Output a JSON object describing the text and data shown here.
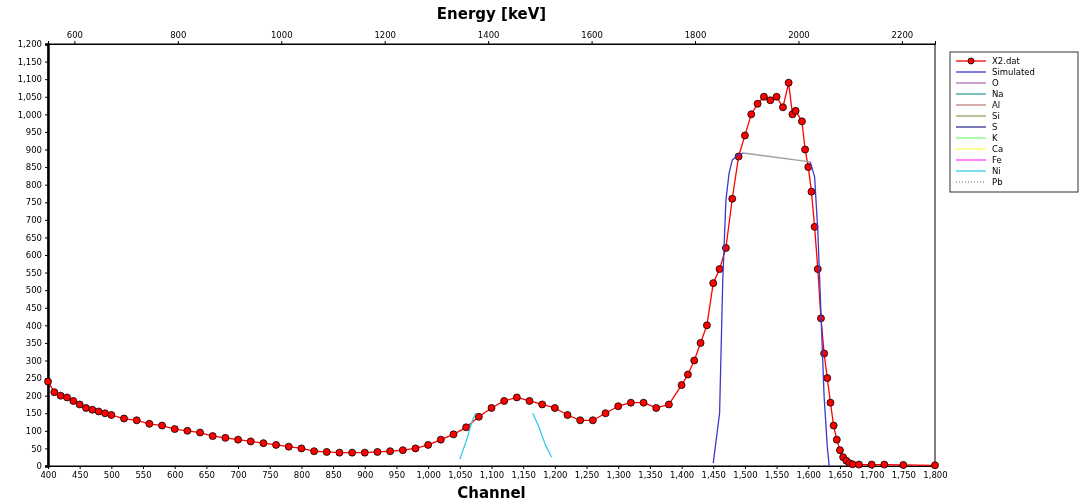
{
  "chart_data": {
    "type": "line",
    "xlabel": "Channel",
    "x2label": "Energy [keV]",
    "xlim": [
      400,
      1800
    ],
    "xticks": [
      400,
      450,
      500,
      550,
      600,
      650,
      700,
      750,
      800,
      850,
      900,
      950,
      {
        "value": 1000,
        "label": "1,000"
      },
      {
        "value": 1050,
        "label": "1,050"
      },
      {
        "value": 1100,
        "label": "1,100"
      },
      {
        "value": 1150,
        "label": "1,150"
      },
      {
        "value": 1200,
        "label": "1,200"
      },
      {
        "value": 1250,
        "label": "1,250"
      },
      {
        "value": 1300,
        "label": "1,300"
      },
      {
        "value": 1350,
        "label": "1,350"
      },
      {
        "value": 1400,
        "label": "1,400"
      },
      {
        "value": 1450,
        "label": "1,450"
      },
      {
        "value": 1500,
        "label": "1,500"
      },
      {
        "value": 1550,
        "label": "1,550"
      },
      {
        "value": 1600,
        "label": "1,600"
      },
      {
        "value": 1650,
        "label": "1,650"
      },
      {
        "value": 1700,
        "label": "1,700"
      },
      {
        "value": 1750,
        "label": "1,750"
      },
      {
        "value": 1800,
        "label": "1,800"
      }
    ],
    "x2lim": [
      549,
      2264
    ],
    "x2ticks": [
      600,
      800,
      1000,
      1200,
      1400,
      1600,
      1800,
      2000,
      2200
    ],
    "ylim": [
      0,
      1200
    ],
    "yticks": [
      0,
      50,
      100,
      150,
      200,
      250,
      300,
      350,
      400,
      450,
      500,
      550,
      600,
      650,
      700,
      750,
      800,
      850,
      900,
      950,
      {
        "value": 1000,
        "label": "1,000"
      },
      {
        "value": 1050,
        "label": "1,050"
      },
      {
        "value": 1100,
        "label": "1,100"
      },
      {
        "value": 1150,
        "label": "1,150"
      },
      {
        "value": 1200,
        "label": "1,200"
      }
    ],
    "grid": false,
    "legend": "right",
    "series": [
      {
        "name": "X2.dat",
        "color": "#ff0000",
        "marker": "circle",
        "x": [
          400,
          410,
          420,
          430,
          440,
          450,
          460,
          470,
          480,
          490,
          500,
          520,
          540,
          560,
          580,
          600,
          620,
          640,
          660,
          680,
          700,
          720,
          740,
          760,
          780,
          800,
          820,
          840,
          860,
          880,
          900,
          920,
          940,
          960,
          980,
          1000,
          1020,
          1040,
          1060,
          1080,
          1100,
          1120,
          1140,
          1160,
          1180,
          1200,
          1220,
          1240,
          1260,
          1280,
          1300,
          1320,
          1340,
          1360,
          1380,
          1400,
          1410,
          1420,
          1430,
          1440,
          1450,
          1460,
          1470,
          1480,
          1490,
          1500,
          1510,
          1520,
          1530,
          1540,
          1550,
          1560,
          1569,
          1575,
          1580,
          1590,
          1595,
          1600,
          1605,
          1610,
          1615,
          1620,
          1625,
          1630,
          1635,
          1640,
          1645,
          1650,
          1655,
          1660,
          1665,
          1670,
          1680,
          1700,
          1720,
          1750,
          1800
        ],
        "values": [
          240,
          210,
          200,
          195,
          185,
          175,
          165,
          160,
          155,
          150,
          145,
          135,
          130,
          120,
          115,
          105,
          100,
          95,
          85,
          80,
          75,
          70,
          65,
          60,
          55,
          50,
          42,
          40,
          38,
          38,
          38,
          40,
          42,
          45,
          50,
          60,
          75,
          90,
          110,
          140,
          165,
          185,
          195,
          185,
          175,
          165,
          145,
          130,
          130,
          150,
          170,
          180,
          180,
          165,
          175,
          230,
          260,
          300,
          350,
          400,
          520,
          560,
          620,
          760,
          880,
          940,
          1000,
          1030,
          1050,
          1040,
          1050,
          1020,
          1090,
          1000,
          1010,
          980,
          900,
          850,
          780,
          680,
          560,
          420,
          320,
          250,
          180,
          115,
          75,
          45,
          25,
          15,
          8,
          5,
          4,
          4,
          4,
          3,
          2
        ]
      },
      {
        "name": "Simulated",
        "color": "#3a3ad0",
        "x": [
          1450,
          1460,
          1465,
          1470,
          1475,
          1480,
          1490,
          1497
        ],
        "values": [
          8,
          150,
          528,
          756,
          833,
          870,
          885,
          890
        ]
      },
      {
        "color": "#a0a0a0",
        "x": [
          1497,
          1603
        ],
        "values": [
          890,
          865
        ]
      },
      {
        "color": "#3a3ad0",
        "x": [
          1603,
          1610,
          1615,
          1620,
          1625,
          1630,
          1633
        ],
        "values": [
          865,
          822,
          670,
          435,
          197,
          55,
          0
        ]
      },
      {
        "name": "O",
        "color": "#b070b0"
      },
      {
        "name": "Na",
        "color": "#30a0a0"
      },
      {
        "name": "Al",
        "color": "#c08080"
      },
      {
        "name": "Si",
        "color": "#a0a060"
      },
      {
        "name": "S",
        "color": "#303090"
      },
      {
        "name": "K",
        "color": "#80ff80"
      },
      {
        "name": "Ca",
        "color": "#ffff60"
      },
      {
        "name": "Fe",
        "color": "#ff40ff"
      },
      {
        "name": "Ni",
        "color": "#33ccee",
        "x": [
          1050,
          1060,
          1070,
          1075
        ],
        "values": [
          20,
          70,
          130,
          150
        ]
      },
      {
        "color": "#33ccee",
        "x": [
          1165,
          1175,
          1185,
          1195
        ],
        "values": [
          150,
          110,
          60,
          25
        ]
      },
      {
        "name": "Pb",
        "color": "#a0a0a0",
        "line_style": "dotted"
      }
    ]
  }
}
